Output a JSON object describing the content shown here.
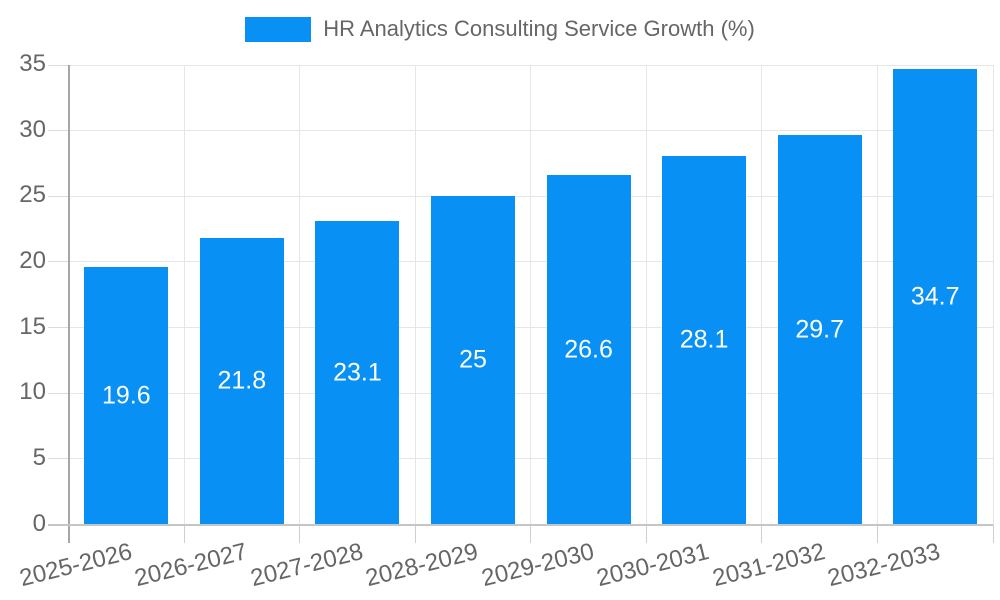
{
  "chart_data": {
    "type": "bar",
    "title": "HR Analytics Consulting Service Growth (%)",
    "legend": {
      "label": "HR Analytics Consulting Service Growth (%)",
      "position": "top"
    },
    "categories": [
      "2025-2026",
      "2026-2027",
      "2027-2028",
      "2028-2029",
      "2029-2030",
      "2030-2031",
      "2031-2032",
      "2032-2033"
    ],
    "values": [
      19.6,
      21.8,
      23.1,
      25,
      26.6,
      28.1,
      29.7,
      34.7
    ],
    "value_labels": [
      "19.6",
      "21.8",
      "23.1",
      "25",
      "26.6",
      "28.1",
      "29.7",
      "34.7"
    ],
    "xlabel": "",
    "ylabel": "",
    "ylim": [
      0,
      35
    ],
    "yticks": [
      0,
      5,
      10,
      15,
      20,
      25,
      30,
      35
    ],
    "ytick_labels": [
      "0",
      "5",
      "10",
      "15",
      "20",
      "25",
      "30",
      "35"
    ],
    "grid": true,
    "colors": {
      "bar": "#0990F4",
      "value_label": "#ffffff",
      "axis_text": "#666666",
      "gridline": "#e6e6e6",
      "y_axis_line": "#a6a6a6",
      "x_axis_line": "#c6c6c6",
      "background": "#ffffff"
    }
  }
}
